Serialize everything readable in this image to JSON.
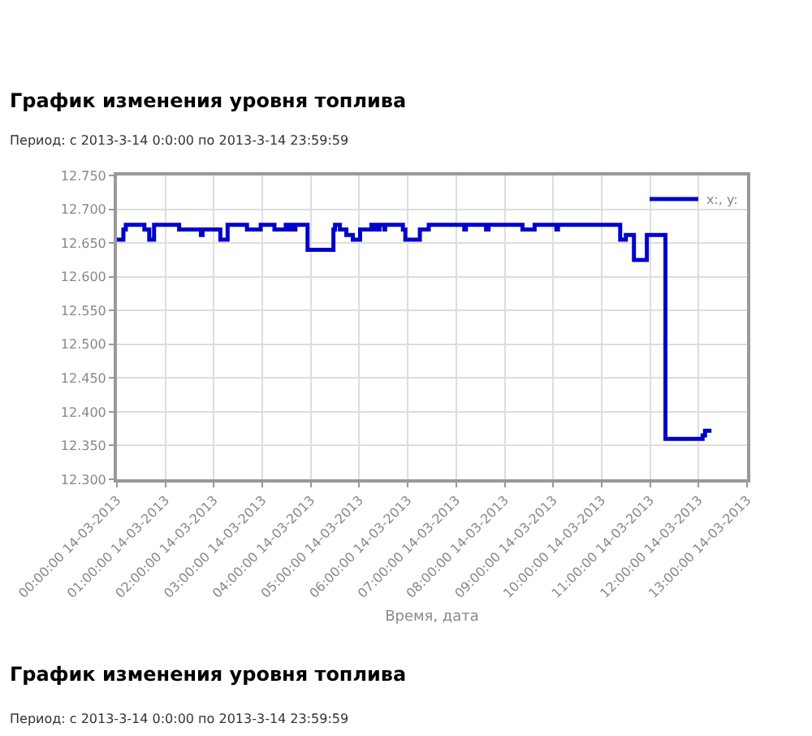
{
  "chart_data": {
    "type": "step",
    "title": "График изменения уровня топлива",
    "xlabel": "Время, дата",
    "annotations": [
      "Период: с 2013-3-14 0:0:00 по 2013-3-14 23:59:59",
      "График изменения уровня топлива",
      "Период: с 2013-3-14 0:0:00 по 2013-3-14 23:59:59"
    ],
    "xlim": [
      "2013-03-14T00:00",
      "2013-03-14T13:00"
    ],
    "xticks": [
      {
        "value": "2013-03-14T00:00",
        "label": "00:00:00 14-03-2013"
      },
      {
        "value": "2013-03-14T01:00",
        "label": "01:00:00 14-03-2013"
      },
      {
        "value": "2013-03-14T02:00",
        "label": "02:00:00 14-03-2013"
      },
      {
        "value": "2013-03-14T03:00",
        "label": "03:00:00 14-03-2013"
      },
      {
        "value": "2013-03-14T04:00",
        "label": "04:00:00 14-03-2013"
      },
      {
        "value": "2013-03-14T05:00",
        "label": "05:00:00 14-03-2013"
      },
      {
        "value": "2013-03-14T06:00",
        "label": "06:00:00 14-03-2013"
      },
      {
        "value": "2013-03-14T07:00",
        "label": "07:00:00 14-03-2013"
      },
      {
        "value": "2013-03-14T08:00",
        "label": "08:00:00 14-03-2013"
      },
      {
        "value": "2013-03-14T09:00",
        "label": "09:00:00 14-03-2013"
      },
      {
        "value": "2013-03-14T10:00",
        "label": "10:00:00 14-03-2013"
      },
      {
        "value": "2013-03-14T11:00",
        "label": "11:00:00 14-03-2013"
      },
      {
        "value": "2013-03-14T12:00",
        "label": "12:00:00 14-03-2013"
      },
      {
        "value": "2013-03-14T13:00",
        "label": "13:00:00 14-03-2013"
      }
    ],
    "ylim": [
      12.3,
      12.75
    ],
    "yticks": [
      {
        "value": 12.3,
        "label": "12.300"
      },
      {
        "value": 12.35,
        "label": "12.350"
      },
      {
        "value": 12.4,
        "label": "12.400"
      },
      {
        "value": 12.45,
        "label": "12.450"
      },
      {
        "value": 12.5,
        "label": "12.500"
      },
      {
        "value": 12.55,
        "label": "12.550"
      },
      {
        "value": 12.6,
        "label": "12.600"
      },
      {
        "value": 12.65,
        "label": "12.650"
      },
      {
        "value": 12.7,
        "label": "12.700"
      },
      {
        "value": 12.75,
        "label": "12.750"
      }
    ],
    "grid": true,
    "legend": "top right",
    "line_style": "solid",
    "x": [
      "2013-03-14T00:00",
      "2013-03-14T00:08",
      "2013-03-14T00:11",
      "2013-03-14T00:34",
      "2013-03-14T00:40",
      "2013-03-14T00:46",
      "2013-03-14T01:17",
      "2013-03-14T01:44",
      "2013-03-14T01:46",
      "2013-03-14T02:08",
      "2013-03-14T02:17",
      "2013-03-14T02:41",
      "2013-03-14T02:58",
      "2013-03-14T03:15",
      "2013-03-14T03:29",
      "2013-03-14T03:31",
      "2013-03-14T03:34",
      "2013-03-14T03:38",
      "2013-03-14T03:41",
      "2013-03-14T03:56",
      "2013-03-14T04:28",
      "2013-03-14T04:30",
      "2013-03-14T04:36",
      "2013-03-14T04:44",
      "2013-03-14T04:52",
      "2013-03-14T05:01",
      "2013-03-14T05:15",
      "2013-03-14T05:18",
      "2013-03-14T05:19",
      "2013-03-14T05:24",
      "2013-03-14T05:25",
      "2013-03-14T05:31",
      "2013-03-14T05:32",
      "2013-03-14T05:54",
      "2013-03-14T05:57",
      "2013-03-14T06:15",
      "2013-03-14T06:26",
      "2013-03-14T07:10",
      "2013-03-14T07:12",
      "2013-03-14T07:37",
      "2013-03-14T07:40",
      "2013-03-14T08:22",
      "2013-03-14T08:37",
      "2013-03-14T09:04",
      "2013-03-14T09:06",
      "2013-03-14T10:23",
      "2013-03-14T10:30",
      "2013-03-14T10:37",
      "2013-03-14T10:40",
      "2013-03-14T10:51",
      "2013-03-14T10:56",
      "2013-03-14T11:09",
      "2013-03-14T11:19",
      "2013-03-14T12:05",
      "2013-03-14T12:08",
      "2013-03-14T12:16"
    ],
    "series": [
      {
        "name": "x:, y:",
        "color": "#0000cc",
        "values": [
          12.655,
          12.67,
          12.677,
          12.67,
          12.655,
          12.677,
          12.67,
          12.662,
          12.67,
          12.655,
          12.677,
          12.67,
          12.677,
          12.67,
          12.677,
          12.67,
          12.677,
          12.67,
          12.677,
          12.64,
          12.67,
          12.677,
          12.67,
          12.662,
          12.655,
          12.67,
          12.677,
          12.67,
          12.677,
          12.67,
          12.677,
          12.67,
          12.677,
          12.67,
          12.655,
          12.67,
          12.677,
          12.67,
          12.677,
          12.67,
          12.677,
          12.67,
          12.677,
          12.67,
          12.677,
          12.655,
          12.662,
          12.662,
          12.625,
          12.625,
          12.662,
          12.662,
          12.36,
          12.365,
          12.372,
          12.372
        ]
      }
    ]
  }
}
